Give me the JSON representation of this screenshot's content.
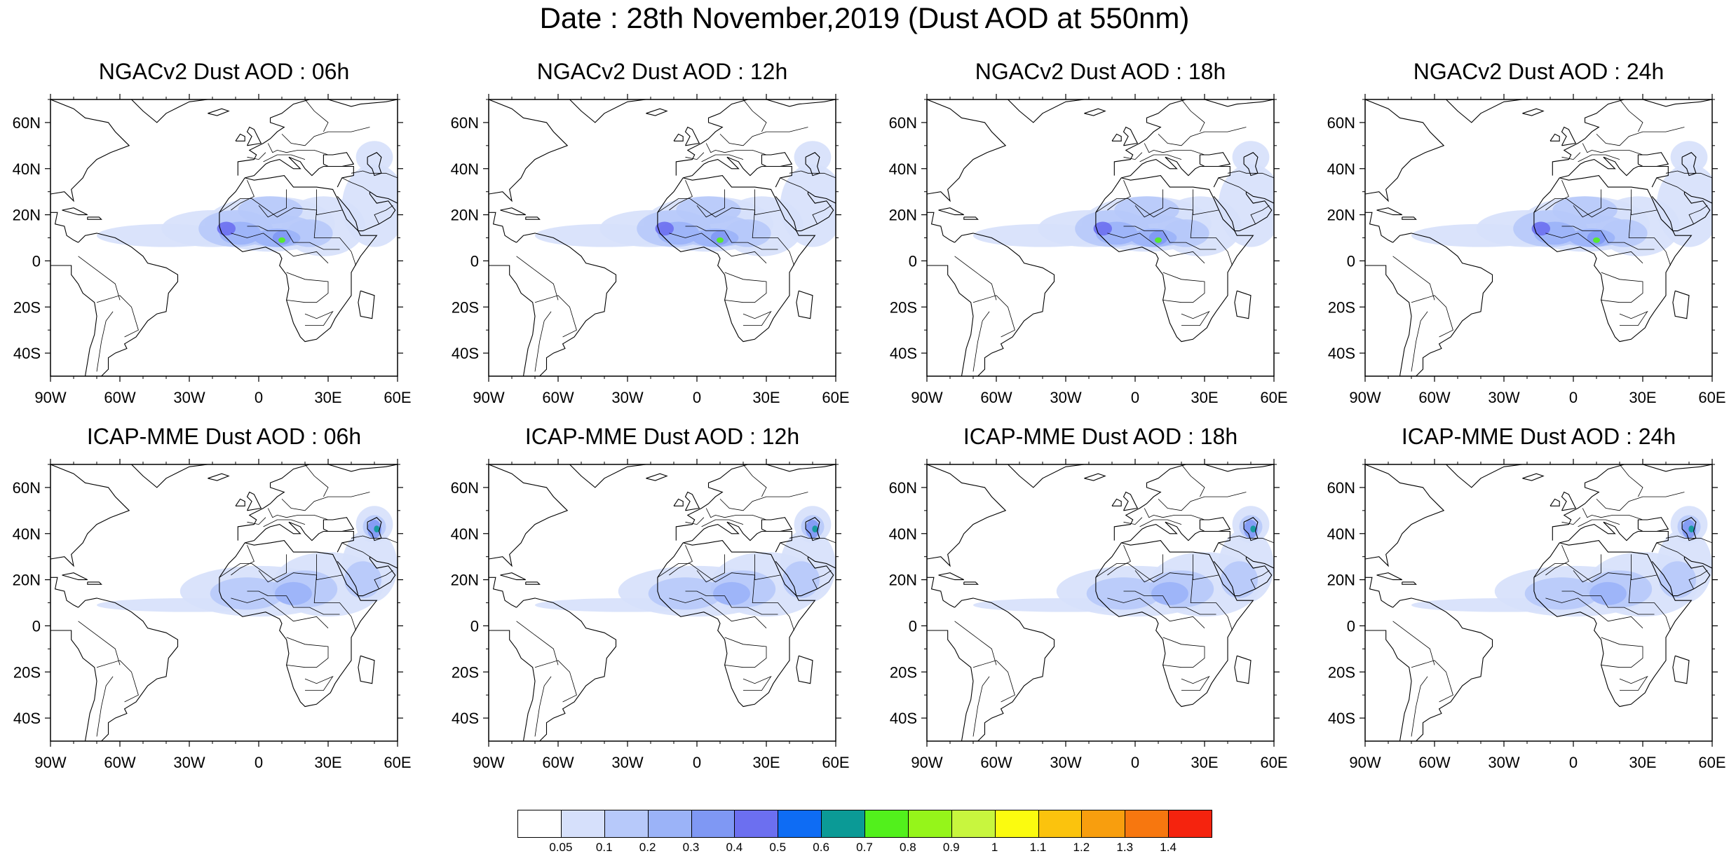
{
  "title": "Date : 28th November,2019 (Dust AOD at 550nm)",
  "panels": [
    {
      "title": "NGACv2 Dust AOD : 06h",
      "model": "ngac",
      "hour": "06h"
    },
    {
      "title": "NGACv2 Dust AOD : 12h",
      "model": "ngac",
      "hour": "12h"
    },
    {
      "title": "NGACv2 Dust AOD : 18h",
      "model": "ngac",
      "hour": "18h"
    },
    {
      "title": "NGACv2 Dust AOD : 24h",
      "model": "ngac",
      "hour": "24h"
    },
    {
      "title": "ICAP-MME Dust AOD : 06h",
      "model": "icap",
      "hour": "06h"
    },
    {
      "title": "ICAP-MME Dust AOD : 12h",
      "model": "icap",
      "hour": "12h"
    },
    {
      "title": "ICAP-MME Dust AOD : 18h",
      "model": "icap",
      "hour": "18h"
    },
    {
      "title": "ICAP-MME Dust AOD : 24h",
      "model": "icap",
      "hour": "24h"
    }
  ],
  "lon_ticks": [
    "90W",
    "60W",
    "30W",
    "0",
    "30E",
    "60E"
  ],
  "lat_ticks": [
    "60N",
    "40N",
    "20N",
    "0",
    "20S",
    "40S"
  ],
  "colorbar": {
    "labels": [
      "0.05",
      "0.1",
      "0.2",
      "0.3",
      "0.4",
      "0.5",
      "0.6",
      "0.7",
      "0.8",
      "0.9",
      "1",
      "1.1",
      "1.2",
      "1.3",
      "1.4"
    ],
    "colors": [
      "#ffffff",
      "#d6e0fb",
      "#b7c9fa",
      "#9bb3f8",
      "#7f98f4",
      "#6c6ff0",
      "#0e6cf4",
      "#0b9a96",
      "#52f01c",
      "#95f51a",
      "#c8f63e",
      "#fbfb0f",
      "#fbc30d",
      "#f89e0e",
      "#f7770f",
      "#f5230e"
    ]
  }
}
